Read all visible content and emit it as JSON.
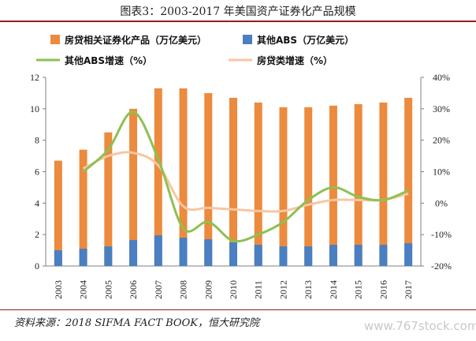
{
  "title": "图表3：2003-2017 年美国资产证券化产品规模",
  "source": "资料来源：2018 SIFMA FACT BOOK，恒大研究院",
  "watermark": "www.767stock.com",
  "colors": {
    "mortgage_bar": "#ec8a3d",
    "abs_bar": "#4a7fc1",
    "abs_growth": "#8cc152",
    "mortgage_growth": "#f7c6a3"
  },
  "chart_data": {
    "type": "bar",
    "categories": [
      "2003",
      "2004",
      "2005",
      "2006",
      "2007",
      "2008",
      "2009",
      "2010",
      "2011",
      "2012",
      "2013",
      "2014",
      "2015",
      "2016",
      "2017"
    ],
    "series": [
      {
        "name": "房贷相关证券化产品（万亿美元）",
        "kind": "bar",
        "axis": "left",
        "values": [
          6.7,
          7.4,
          8.5,
          10.0,
          11.3,
          11.3,
          11.0,
          10.7,
          10.4,
          10.1,
          10.1,
          10.2,
          10.3,
          10.4,
          10.7
        ]
      },
      {
        "name": "其他ABS（万亿美元）",
        "kind": "bar",
        "axis": "left",
        "values": [
          1.0,
          1.1,
          1.25,
          1.65,
          1.95,
          1.8,
          1.7,
          1.5,
          1.35,
          1.25,
          1.25,
          1.35,
          1.35,
          1.35,
          1.45
        ]
      },
      {
        "name": "其他ABS增速（%）",
        "kind": "line",
        "axis": "right",
        "values": [
          null,
          10,
          17,
          29,
          14,
          -8,
          -6,
          -12,
          -10,
          -6,
          1,
          5,
          2,
          1,
          4
        ]
      },
      {
        "name": "房贷类增速（%）",
        "kind": "line",
        "axis": "right",
        "values": [
          null,
          11,
          15,
          16,
          12,
          -1,
          -1.5,
          -2,
          -2.5,
          -2.5,
          -0.5,
          1,
          1,
          1,
          3
        ]
      }
    ],
    "y_left": {
      "min": 0,
      "max": 12,
      "ticks": [
        0,
        2,
        4,
        6,
        8,
        10,
        12
      ]
    },
    "y_right": {
      "min": -20,
      "max": 40,
      "ticks": [
        -20,
        -10,
        0,
        10,
        20,
        30,
        40
      ],
      "tick_labels": [
        "-20%",
        "-10%",
        "0%",
        "10%",
        "20%",
        "30%",
        "40%"
      ]
    },
    "legend_position": "top",
    "grid": false
  }
}
